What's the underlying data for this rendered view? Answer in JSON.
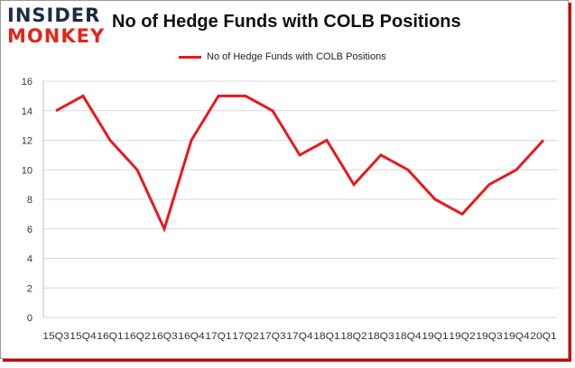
{
  "logo": {
    "top": "INSIDER",
    "bottom": "MONKEY"
  },
  "chart_data": {
    "type": "line",
    "title": "No of Hedge Funds with COLB Positions",
    "categories": [
      "15Q3",
      "15Q4",
      "16Q1",
      "16Q2",
      "16Q3",
      "16Q4",
      "17Q1",
      "17Q2",
      "17Q3",
      "17Q4",
      "18Q1",
      "18Q2",
      "18Q3",
      "18Q4",
      "19Q1",
      "19Q2",
      "19Q3",
      "19Q4",
      "20Q1"
    ],
    "series": [
      {
        "name": "No of Hedge Funds with COLB Positions",
        "values": [
          14,
          15,
          12,
          10,
          6,
          12,
          15,
          15,
          14,
          11,
          12,
          9,
          11,
          10,
          8,
          7,
          9,
          10,
          12
        ],
        "color": "#e8191c"
      }
    ],
    "y_ticks": [
      "0",
      "2",
      "4",
      "6",
      "8",
      "10",
      "12",
      "14",
      "16"
    ],
    "ylim": [
      0,
      16
    ],
    "xlabel": "",
    "ylabel": "",
    "grid": "horizontal",
    "legend_position": "top-center"
  }
}
